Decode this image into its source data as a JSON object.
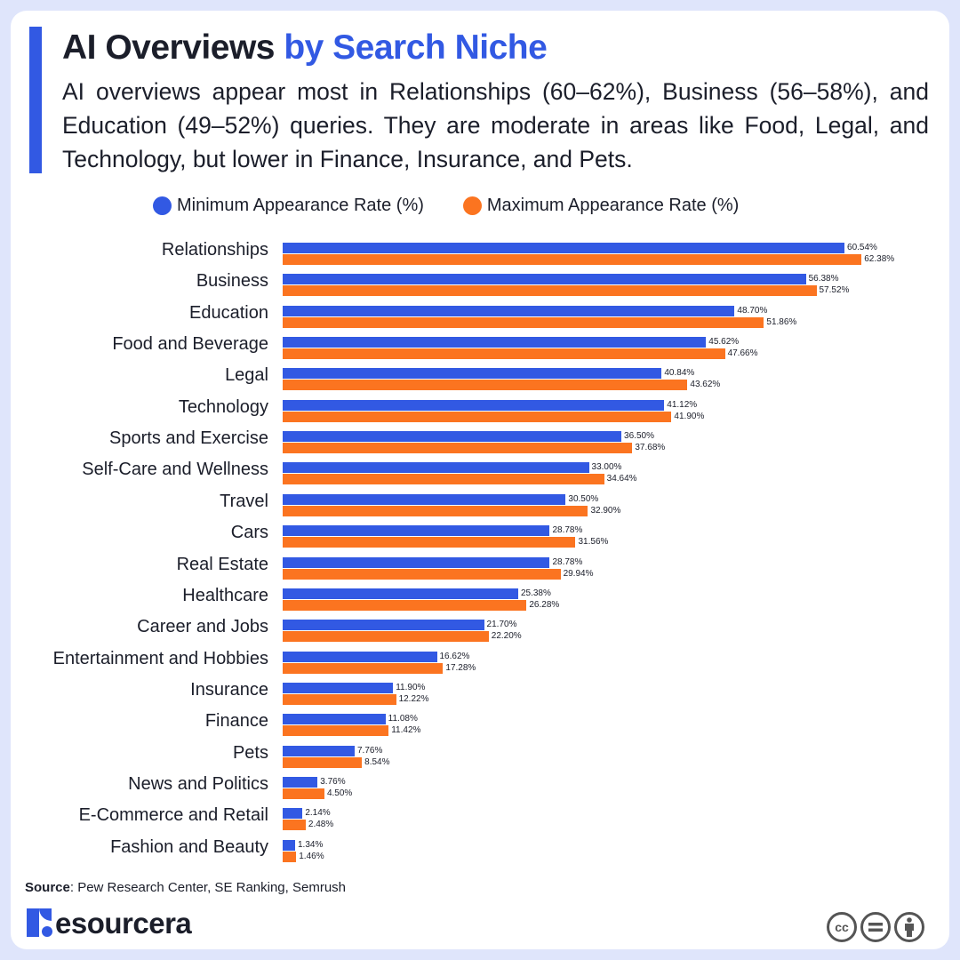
{
  "header": {
    "title_main": "AI Overviews",
    "title_highlight": "by Search Niche",
    "subtitle": "AI overviews appear most in Relationships (60–62%), Business (56–58%), and Education (49–52%) queries. They are moderate in areas like Food, Legal, and Technology, but lower in Finance, Insurance, and Pets."
  },
  "legend": {
    "min_label": "Minimum Appearance Rate (%)",
    "max_label": "Maximum Appearance Rate (%)"
  },
  "colors": {
    "min": "#3259e3",
    "max": "#fb7420",
    "accent": "#3259e3"
  },
  "chart_data": {
    "type": "bar",
    "orientation": "horizontal",
    "title": "AI Overviews by Search Niche",
    "xlabel": "",
    "ylabel": "",
    "legend_position": "top",
    "grid": false,
    "categories": [
      "Relationships",
      "Business",
      "Education",
      "Food and Beverage",
      "Legal",
      "Technology",
      "Sports and Exercise",
      "Self-Care and Wellness",
      "Travel",
      "Cars",
      "Real Estate",
      "Healthcare",
      "Career and Jobs",
      "Entertainment and Hobbies",
      "Insurance",
      "Finance",
      "Pets",
      "News and Politics",
      "E-Commerce and Retail",
      "Fashion and Beauty"
    ],
    "series": [
      {
        "name": "Minimum Appearance Rate (%)",
        "values": [
          60.54,
          56.38,
          48.7,
          45.62,
          40.84,
          41.12,
          36.5,
          33.0,
          30.5,
          28.78,
          28.78,
          25.38,
          21.7,
          16.62,
          11.9,
          11.08,
          7.76,
          3.76,
          2.14,
          1.34
        ]
      },
      {
        "name": "Maximum Appearance Rate (%)",
        "values": [
          62.38,
          57.52,
          51.86,
          47.66,
          43.62,
          41.9,
          37.68,
          34.64,
          32.9,
          31.56,
          29.94,
          26.28,
          22.2,
          17.28,
          12.22,
          11.42,
          8.54,
          4.5,
          2.48,
          1.46
        ]
      }
    ],
    "labels_min": [
      "60.54%",
      "56.38%",
      "48.70%",
      "45.62%",
      "40.84%",
      "41.12%",
      "36.50%",
      "33.00%",
      "30.50%",
      "28.78%",
      "28.78%",
      "25.38%",
      "21.70%",
      "16.62%",
      "11.90%",
      "11.08%",
      "7.76%",
      "3.76%",
      "2.14%",
      "1.34%"
    ],
    "labels_max": [
      "62.38%",
      "57.52%",
      "51.86%",
      "47.66%",
      "43.62%",
      "41.90%",
      "37.68%",
      "34.64%",
      "32.90%",
      "31.56%",
      "29.94%",
      "26.28%",
      "22.20%",
      "17.28%",
      "12.22%",
      "11.42%",
      "8.54%",
      "4.50%",
      "2.48%",
      "1.46%"
    ]
  },
  "footer": {
    "source_label": "Source",
    "source_text": ": Pew Research Center, SE Ranking, Semrush",
    "logo_text": "esourcera",
    "license_icons": [
      "cc-icon",
      "equals-icon",
      "person-icon"
    ]
  }
}
